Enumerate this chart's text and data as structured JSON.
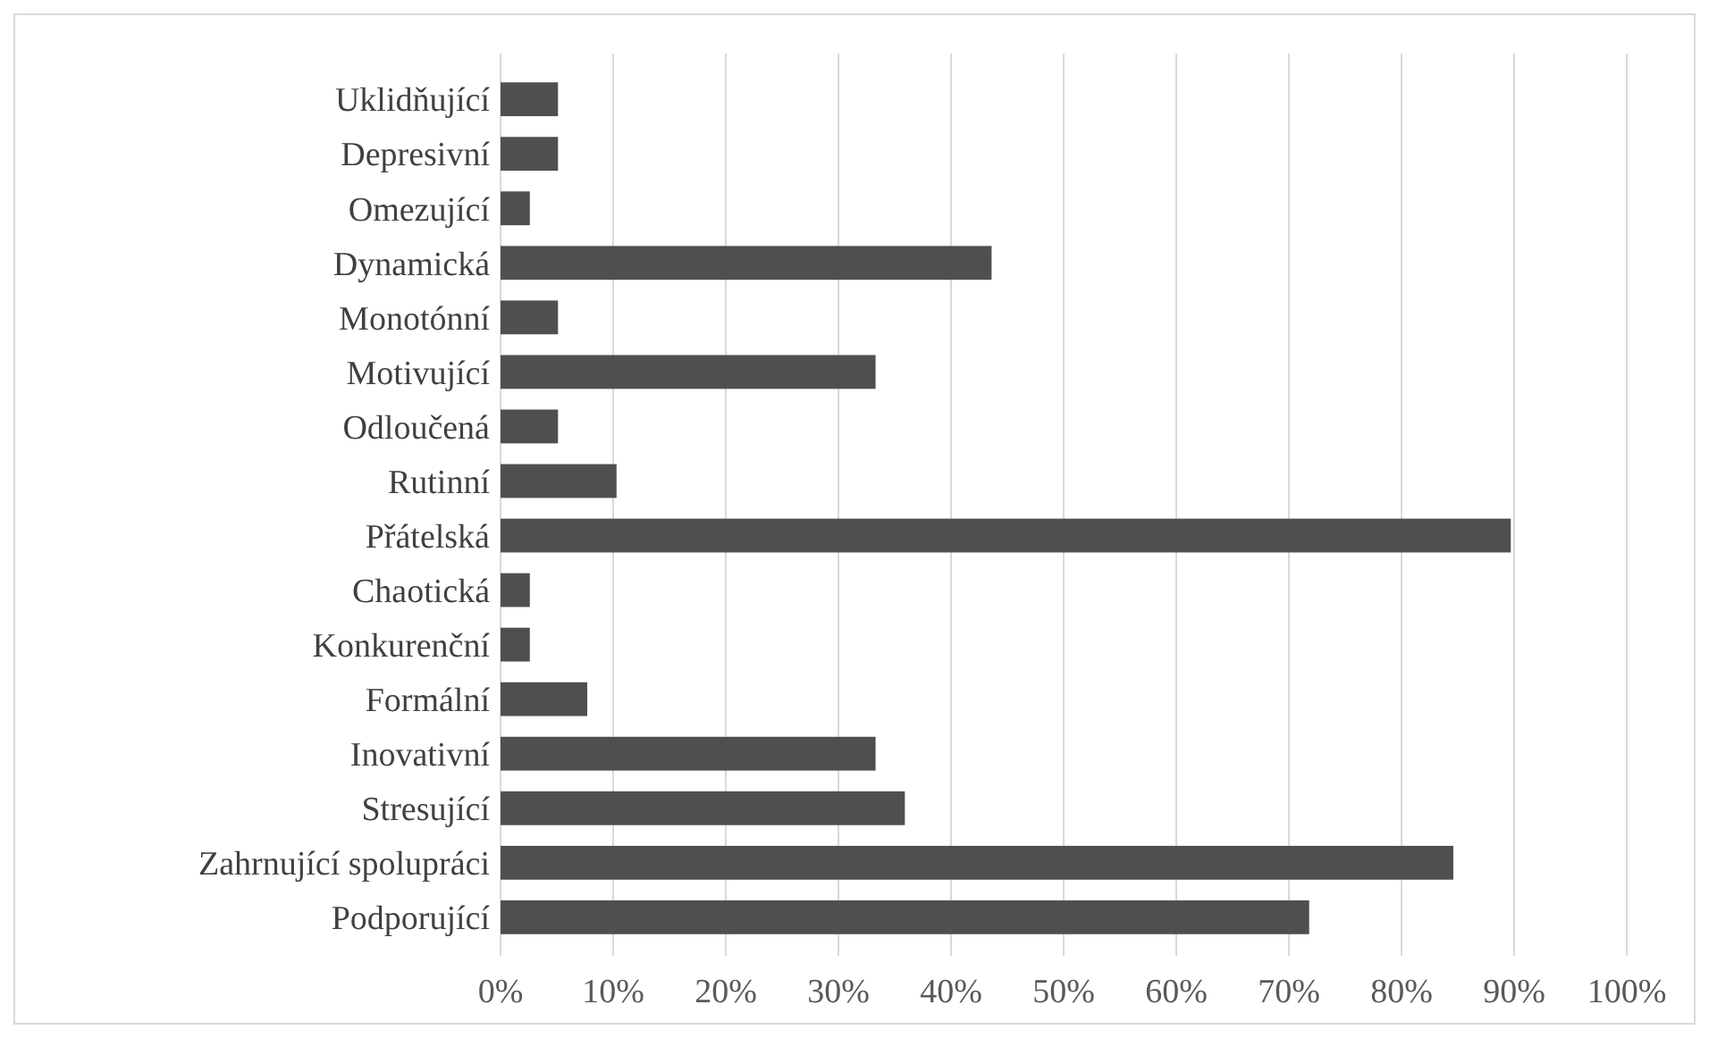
{
  "chart_data": {
    "type": "bar",
    "orientation": "horizontal",
    "categories": [
      "Uklidňující",
      "Depresivní",
      "Omezující",
      "Dynamická",
      "Monotónní",
      "Motivující",
      "Odloučená",
      "Rutinní",
      "Přátelská",
      "Chaotická",
      "Konkurenční",
      "Formální",
      "Inovativní",
      "Stresující",
      "Zahrnující spolupráci",
      "Podporující"
    ],
    "values": [
      5.1,
      5.1,
      2.6,
      43.6,
      5.1,
      33.3,
      5.1,
      10.3,
      89.7,
      2.6,
      2.6,
      7.7,
      33.3,
      35.9,
      84.6,
      71.8
    ],
    "color": "#4f4f4f",
    "xlim": [
      0,
      100
    ],
    "xticks": [
      {
        "value": 0,
        "label": "0%"
      },
      {
        "value": 10,
        "label": "10%"
      },
      {
        "value": 20,
        "label": "20%"
      },
      {
        "value": 30,
        "label": "30%"
      },
      {
        "value": 40,
        "label": "40%"
      },
      {
        "value": 50,
        "label": "50%"
      },
      {
        "value": 60,
        "label": "60%"
      },
      {
        "value": 70,
        "label": "70%"
      },
      {
        "value": 80,
        "label": "80%"
      },
      {
        "value": 90,
        "label": "90%"
      },
      {
        "value": 100,
        "label": "100%"
      }
    ],
    "grid": "x"
  }
}
